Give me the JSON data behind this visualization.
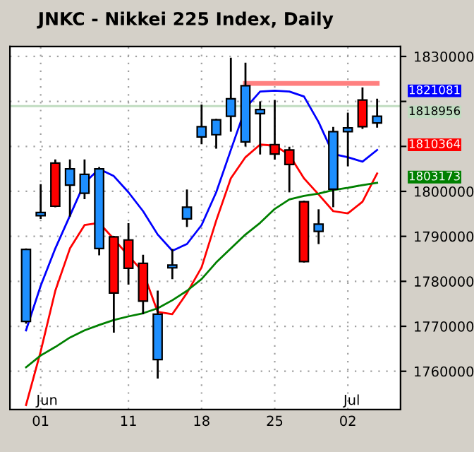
{
  "chart_data": {
    "type": "candlestick",
    "title": "JNKC - Nikkei 225 Index, Daily",
    "categories": [
      null,
      "01",
      null,
      null,
      null,
      null,
      null,
      "11",
      null,
      null,
      null,
      null,
      "18",
      null,
      null,
      null,
      null,
      "25",
      null,
      null,
      null,
      null,
      "02",
      null,
      null
    ],
    "ohlc": [
      [
        1771100,
        1787100,
        1770800,
        1787100
      ],
      [
        1794600,
        1801400,
        1794100,
        1795300
      ],
      [
        1806300,
        1806900,
        1796700,
        1796700
      ],
      [
        1801400,
        1806900,
        1794600,
        1805000
      ],
      [
        1799600,
        1806900,
        1798500,
        1803800
      ],
      [
        1787300,
        1805200,
        1786000,
        1805000
      ],
      [
        1789900,
        1789900,
        1768800,
        1777400
      ],
      [
        1789200,
        1792700,
        1779500,
        1782900
      ],
      [
        1784000,
        1785700,
        1772900,
        1775600
      ],
      [
        1762600,
        1777700,
        1758600,
        1772700
      ],
      [
        1783000,
        1787000,
        1780700,
        1783600
      ],
      [
        1793900,
        1800200,
        1792300,
        1796500
      ],
      [
        1812100,
        1819100,
        1810700,
        1814400
      ],
      [
        1812600,
        1815900,
        1809700,
        1815900
      ],
      [
        1816700,
        1829500,
        1813500,
        1820600
      ],
      [
        1811000,
        1828400,
        1810200,
        1823500
      ],
      [
        1817300,
        1819800,
        1808400,
        1818200
      ],
      [
        1810400,
        1820100,
        1807300,
        1808300
      ],
      [
        1809200,
        1809700,
        1800000,
        1806000
      ],
      [
        1797700,
        1797700,
        1784400,
        1784400
      ],
      [
        1791100,
        1795800,
        1788500,
        1792700
      ],
      [
        1800500,
        1814100,
        1796700,
        1813300
      ],
      [
        1813300,
        1817300,
        1805800,
        1814100
      ],
      [
        1820300,
        1822900,
        1814100,
        1814400
      ],
      [
        1815200,
        1820400,
        1814400,
        1816700
      ]
    ],
    "colors": [
      "#1e8fff",
      "#1e8fff",
      "#ff0000",
      "#1e8fff",
      "#1e8fff",
      "#1e8fff",
      "#ff0000",
      "#ff0000",
      "#ff0000",
      "#1e8fff",
      "#1e8fff",
      "#1e8fff",
      "#1e8fff",
      "#1e8fff",
      "#1e8fff",
      "#1e8fff",
      "#1e8fff",
      "#ff0000",
      "#ff0000",
      "#ff0000",
      "#1e8fff",
      "#1e8fff",
      "#1e8fff",
      "#ff0000",
      "#1e8fff"
    ],
    "series": [
      {
        "type": "line",
        "color": "#0000ff",
        "values": [
          1769100,
          1779000,
          1787300,
          1794600,
          1801900,
          1805000,
          1803400,
          1799800,
          1795600,
          1790400,
          1786800,
          1788300,
          1792500,
          1799800,
          1809200,
          1818500,
          1822200,
          1822400,
          1822200,
          1821100,
          1815400,
          1808300,
          1807600,
          1806600,
          1809200
        ]
      },
      {
        "type": "line",
        "color": "#ff0000",
        "values": [
          1752500,
          1764400,
          1777900,
          1787300,
          1792500,
          1793000,
          1789400,
          1785700,
          1782100,
          1773200,
          1772700,
          1777400,
          1783100,
          1793500,
          1802900,
          1807600,
          1810400,
          1810200,
          1808100,
          1802900,
          1799300,
          1795600,
          1795100,
          1797700,
          1804000
        ]
      },
      {
        "type": "line",
        "color": "#008000",
        "values": [
          1760900,
          1763500,
          1765400,
          1767500,
          1769100,
          1770300,
          1771400,
          1772200,
          1772900,
          1774000,
          1775800,
          1777900,
          1780500,
          1784200,
          1787300,
          1790400,
          1793000,
          1796100,
          1798200,
          1799000,
          1799500,
          1800300,
          1800800,
          1801400,
          1801900
        ]
      },
      {
        "type": "line",
        "color": "#ff8080",
        "values": [
          null,
          null,
          null,
          null,
          null,
          null,
          null,
          null,
          null,
          null,
          null,
          null,
          null,
          null,
          null,
          1824000,
          1824000,
          1824000,
          1824000,
          1824000,
          1824000,
          1824000,
          1824000,
          1824000,
          1824000
        ]
      }
    ],
    "ref_lines": [
      {
        "axis": "y",
        "value": 1818956,
        "label": "1818956",
        "color": "#c0dcc0"
      }
    ],
    "annotations": [
      "1821081",
      "1810364",
      "1803173",
      "Jun",
      "Jul"
    ],
    "ylim": [
      1751500,
      1832200
    ],
    "yticks": [
      1760000,
      1770000,
      1780000,
      1790000,
      1800000,
      {
        "value": 1810000,
        "label": null
      },
      {
        "value": 1820000,
        "label": null
      },
      1830000
    ],
    "grid": true
  }
}
